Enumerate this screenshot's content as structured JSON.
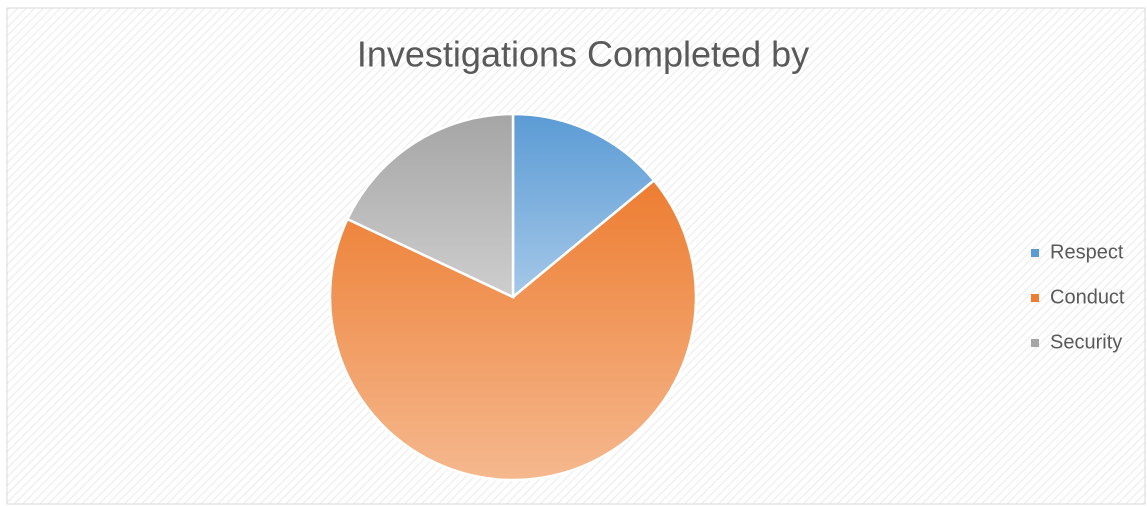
{
  "chart_data": {
    "type": "pie",
    "title": "Investigations Completed by",
    "categories": [
      "Respect",
      "Conduct",
      "Security"
    ],
    "values": [
      14,
      68,
      18
    ],
    "colors": [
      "#5b9bd5",
      "#ed7d31",
      "#a5a5a5"
    ],
    "legend": "right"
  }
}
